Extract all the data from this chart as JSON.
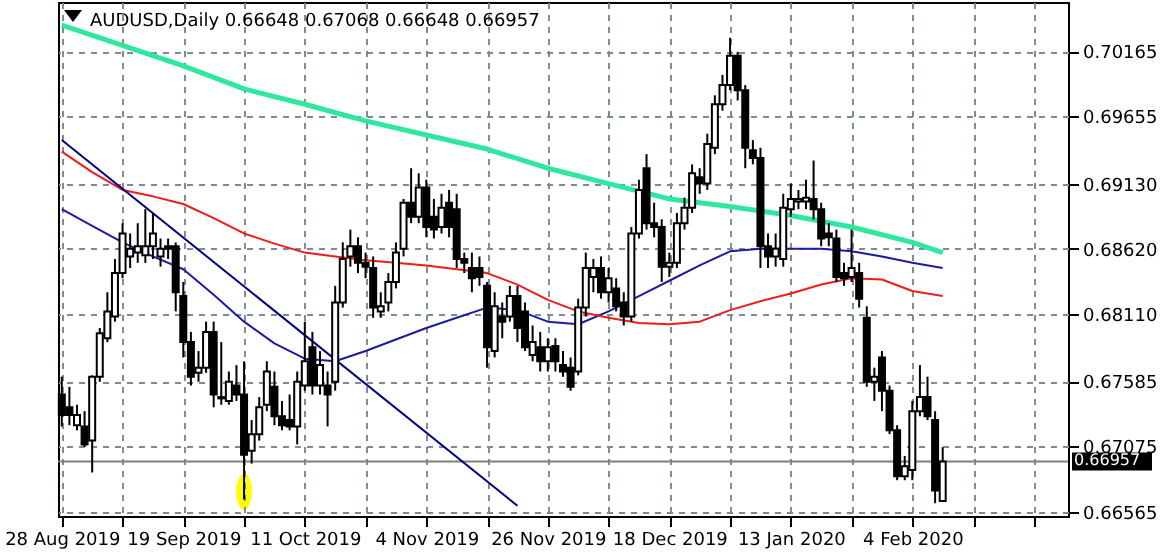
{
  "chart_data": {
    "type": "candlestick",
    "title": "AUDUSD,Daily  0.66648 0.67068 0.66648 0.66957",
    "categories": [
      "28 Aug 2019",
      null,
      null,
      null,
      null,
      null,
      null,
      null,
      null,
      null,
      null,
      null,
      null,
      null,
      null,
      null,
      "19 Sep 2019",
      null,
      null,
      null,
      null,
      null,
      null,
      null,
      null,
      null,
      null,
      null,
      null,
      null,
      null,
      null,
      "11 Oct 2019",
      null,
      null,
      null,
      null,
      null,
      null,
      null,
      null,
      null,
      null,
      null,
      null,
      null,
      null,
      null,
      "4 Nov 2019",
      null,
      null,
      null,
      null,
      null,
      null,
      null,
      null,
      null,
      null,
      null,
      null,
      null,
      null,
      null,
      "26 Nov 2019",
      null,
      null,
      null,
      null,
      null,
      null,
      null,
      null,
      null,
      null,
      null,
      null,
      null,
      null,
      null,
      "18 Dec 2019",
      null,
      null,
      null,
      null,
      null,
      null,
      null,
      null,
      null,
      null,
      null,
      null,
      null,
      null,
      null,
      "13 Jan 2020",
      null,
      null,
      null,
      null,
      null,
      null,
      null,
      null,
      null,
      null,
      null,
      null,
      null,
      null,
      null,
      "4 Feb 2020",
      null,
      null,
      null,
      null,
      null,
      null,
      null,
      null,
      null,
      null,
      null,
      null,
      null,
      null,
      null,
      null,
      null,
      null,
      null,
      null
    ],
    "ohlc": [
      [
        0.6748,
        0.6762,
        0.6723,
        0.6732
      ],
      [
        0.6738,
        0.6754,
        0.6724,
        0.6732
      ],
      [
        0.6724,
        0.674,
        0.672,
        0.6732
      ],
      [
        0.6723,
        0.6735,
        0.6707,
        0.6709
      ],
      [
        0.6712,
        0.6763,
        0.6687,
        0.6762
      ],
      [
        0.6762,
        0.68,
        0.6758,
        0.6796
      ],
      [
        0.6792,
        0.6828,
        0.6789,
        0.6813
      ],
      [
        0.6809,
        0.6854,
        0.6805,
        0.6843
      ],
      [
        0.6843,
        0.6882,
        0.6839,
        0.6874
      ],
      [
        0.6856,
        0.6874,
        0.6847,
        0.6862
      ],
      [
        0.6859,
        0.6882,
        0.6851,
        0.6864
      ],
      [
        0.6857,
        0.6893,
        0.6851,
        0.6864
      ],
      [
        0.6864,
        0.689,
        0.6854,
        0.6874
      ],
      [
        0.6856,
        0.687,
        0.6848,
        0.6862
      ],
      [
        0.6864,
        0.687,
        0.6854,
        0.6862
      ],
      [
        0.6864,
        0.6867,
        0.6813,
        0.6828
      ],
      [
        0.6825,
        0.6836,
        0.6777,
        0.6789
      ],
      [
        0.6789,
        0.6797,
        0.6755,
        0.6762
      ],
      [
        0.6765,
        0.6782,
        0.6758,
        0.6769
      ],
      [
        0.6769,
        0.6805,
        0.6765,
        0.6797
      ],
      [
        0.6797,
        0.6805,
        0.6738,
        0.6748
      ],
      [
        0.6746,
        0.6789,
        0.674,
        0.6745
      ],
      [
        0.6743,
        0.6766,
        0.674,
        0.6758
      ],
      [
        0.6755,
        0.6771,
        0.6743,
        0.6748
      ],
      [
        0.6748,
        0.6774,
        0.6666,
        0.6701
      ],
      [
        0.6704,
        0.6728,
        0.6694,
        0.6717
      ],
      [
        0.6717,
        0.6746,
        0.6712,
        0.6738
      ],
      [
        0.674,
        0.6774,
        0.6735,
        0.6766
      ],
      [
        0.6754,
        0.6766,
        0.6724,
        0.6731
      ],
      [
        0.6731,
        0.6743,
        0.672,
        0.6724
      ],
      [
        0.6728,
        0.6748,
        0.672,
        0.6723
      ],
      [
        0.6723,
        0.6766,
        0.6709,
        0.6758
      ],
      [
        0.6755,
        0.6805,
        0.6751,
        0.6774
      ],
      [
        0.6785,
        0.6797,
        0.6748,
        0.6755
      ],
      [
        0.6755,
        0.6782,
        0.6748,
        0.6771
      ],
      [
        0.6755,
        0.6766,
        0.6723,
        0.6748
      ],
      [
        0.6758,
        0.6833,
        0.6751,
        0.682
      ],
      [
        0.682,
        0.6867,
        0.6816,
        0.6854
      ],
      [
        0.6856,
        0.6877,
        0.6848,
        0.6864
      ],
      [
        0.6864,
        0.6871,
        0.6843,
        0.6851
      ],
      [
        0.6851,
        0.6859,
        0.6839,
        0.6848
      ],
      [
        0.6847,
        0.6856,
        0.6808,
        0.6816
      ],
      [
        0.6813,
        0.6828,
        0.6808,
        0.6817
      ],
      [
        0.682,
        0.6843,
        0.6813,
        0.6836
      ],
      [
        0.6836,
        0.6867,
        0.6831,
        0.6859
      ],
      [
        0.6862,
        0.6901,
        0.6856,
        0.6898
      ],
      [
        0.6898,
        0.6925,
        0.6882,
        0.6887
      ],
      [
        0.6887,
        0.6921,
        0.6882,
        0.691
      ],
      [
        0.691,
        0.6916,
        0.6871,
        0.6879
      ],
      [
        0.6887,
        0.6901,
        0.687,
        0.6877
      ],
      [
        0.6879,
        0.6905,
        0.6874,
        0.6894
      ],
      [
        0.6898,
        0.6908,
        0.6871,
        0.6879
      ],
      [
        0.6893,
        0.6905,
        0.6847,
        0.6854
      ],
      [
        0.6854,
        0.6859,
        0.6843,
        0.6851
      ],
      [
        0.6847,
        0.6859,
        0.6828,
        0.6839
      ],
      [
        0.6847,
        0.6856,
        0.6833,
        0.684
      ],
      [
        0.6833,
        0.6836,
        0.6769,
        0.6785
      ],
      [
        0.6782,
        0.6828,
        0.6777,
        0.6817
      ],
      [
        0.6809,
        0.682,
        0.6792,
        0.6805
      ],
      [
        0.6809,
        0.6833,
        0.6805,
        0.6825
      ],
      [
        0.6825,
        0.6833,
        0.6789,
        0.68
      ],
      [
        0.6813,
        0.682,
        0.6782,
        0.6785
      ],
      [
        0.6779,
        0.6802,
        0.6774,
        0.6789
      ],
      [
        0.6785,
        0.6797,
        0.6766,
        0.6774
      ],
      [
        0.6774,
        0.6792,
        0.6766,
        0.6785
      ],
      [
        0.6786,
        0.6792,
        0.6766,
        0.6774
      ],
      [
        0.6771,
        0.6782,
        0.6762,
        0.6766
      ],
      [
        0.6769,
        0.6777,
        0.6751,
        0.6754
      ],
      [
        0.6766,
        0.6823,
        0.6763,
        0.6816
      ],
      [
        0.6816,
        0.6859,
        0.6809,
        0.6847
      ],
      [
        0.684,
        0.6854,
        0.6828,
        0.6847
      ],
      [
        0.6847,
        0.6856,
        0.6823,
        0.6828
      ],
      [
        0.6828,
        0.6847,
        0.682,
        0.6839
      ],
      [
        0.6831,
        0.6839,
        0.6813,
        0.6817
      ],
      [
        0.682,
        0.6828,
        0.6802,
        0.6809
      ],
      [
        0.6809,
        0.6879,
        0.6805,
        0.6874
      ],
      [
        0.6874,
        0.6916,
        0.687,
        0.6908
      ],
      [
        0.6925,
        0.6936,
        0.6877,
        0.6882
      ],
      [
        0.6882,
        0.6898,
        0.6871,
        0.6879
      ],
      [
        0.6879,
        0.6885,
        0.6836,
        0.6848
      ],
      [
        0.6848,
        0.6859,
        0.684,
        0.6851
      ],
      [
        0.6851,
        0.689,
        0.6847,
        0.6882
      ],
      [
        0.6882,
        0.6902,
        0.6877,
        0.6894
      ],
      [
        0.6894,
        0.6928,
        0.689,
        0.6921
      ],
      [
        0.6918,
        0.6925,
        0.6905,
        0.6913
      ],
      [
        0.6913,
        0.6952,
        0.6908,
        0.6944
      ],
      [
        0.6941,
        0.6982,
        0.6936,
        0.6975
      ],
      [
        0.6975,
        0.6998,
        0.697,
        0.699
      ],
      [
        0.699,
        0.7027,
        0.6986,
        0.7013
      ],
      [
        0.7013,
        0.7016,
        0.6978,
        0.6986
      ],
      [
        0.6986,
        0.699,
        0.6925,
        0.6941
      ],
      [
        0.6939,
        0.6947,
        0.6928,
        0.6933
      ],
      [
        0.6933,
        0.6941,
        0.6847,
        0.6864
      ],
      [
        0.6864,
        0.6874,
        0.6847,
        0.6856
      ],
      [
        0.6856,
        0.6874,
        0.6848,
        0.6862
      ],
      [
        0.6854,
        0.6905,
        0.6848,
        0.6894
      ],
      [
        0.6893,
        0.6913,
        0.6887,
        0.6901
      ],
      [
        0.6899,
        0.6908,
        0.6893,
        0.6901
      ],
      [
        0.6899,
        0.6916,
        0.6893,
        0.6902
      ],
      [
        0.6901,
        0.6931,
        0.6885,
        0.6893
      ],
      [
        0.6893,
        0.6898,
        0.6864,
        0.687
      ],
      [
        0.6874,
        0.6882,
        0.6864,
        0.6871
      ],
      [
        0.687,
        0.6877,
        0.6836,
        0.684
      ],
      [
        0.6843,
        0.6851,
        0.6833,
        0.6839
      ],
      [
        0.684,
        0.6877,
        0.6836,
        0.6847
      ],
      [
        0.6843,
        0.6851,
        0.6816,
        0.6823
      ],
      [
        0.6808,
        0.6817,
        0.6754,
        0.6758
      ],
      [
        0.6758,
        0.6769,
        0.6743,
        0.6762
      ],
      [
        0.6777,
        0.6782,
        0.6735,
        0.6751
      ],
      [
        0.6751,
        0.6755,
        0.6717,
        0.672
      ],
      [
        0.672,
        0.6724,
        0.6681,
        0.6684
      ],
      [
        0.6684,
        0.67,
        0.6681,
        0.6692
      ],
      [
        0.6689,
        0.6743,
        0.6681,
        0.6735
      ],
      [
        0.6735,
        0.6771,
        0.6731,
        0.6746
      ],
      [
        0.6746,
        0.6762,
        0.6728,
        0.6731
      ],
      [
        0.6728,
        0.6735,
        0.6663,
        0.6673
      ],
      [
        0.66648,
        0.67068,
        0.66648,
        0.66957
      ],
      null,
      null,
      null,
      null,
      null,
      null,
      null,
      null,
      null,
      null,
      null,
      null,
      null,
      null,
      null,
      null
    ],
    "series": [
      {
        "type": "line",
        "color": "#2ee8a0",
        "values": [
          0.7037,
          null,
          null,
          null,
          null,
          null,
          null,
          null,
          0.7021,
          null,
          null,
          null,
          null,
          null,
          null,
          null,
          0.7005,
          null,
          null,
          null,
          null,
          null,
          null,
          null,
          0.6987,
          null,
          null,
          null,
          null,
          null,
          null,
          null,
          0.6975,
          null,
          null,
          null,
          null,
          null,
          null,
          null,
          0.6962,
          null,
          null,
          null,
          null,
          null,
          null,
          null,
          0.6951,
          null,
          null,
          null,
          null,
          null,
          null,
          null,
          0.694,
          null,
          null,
          null,
          null,
          null,
          null,
          null,
          0.6925,
          null,
          null,
          null,
          null,
          null,
          null,
          null,
          0.6913,
          null,
          null,
          null,
          null,
          null,
          null,
          null,
          0.6901,
          null,
          null,
          null,
          null,
          null,
          null,
          null,
          0.6895,
          null,
          null,
          null,
          null,
          null,
          null,
          null,
          0.6888,
          null,
          null,
          null,
          null,
          null,
          null,
          null,
          0.6879,
          null,
          null,
          null,
          null,
          null,
          null,
          null,
          0.6867,
          null,
          null,
          null,
          0.6859,
          null,
          null,
          null,
          null,
          null,
          null,
          null,
          null,
          null,
          null,
          null,
          null,
          null,
          null,
          null,
          null
        ]
      },
      {
        "type": "line",
        "color": "#1c1c9c",
        "values": [
          0.6893,
          null,
          null,
          null,
          0.688,
          null,
          null,
          null,
          0.6867,
          null,
          null,
          null,
          0.6856,
          null,
          null,
          null,
          0.6846,
          null,
          null,
          null,
          0.6826,
          null,
          null,
          null,
          0.6805,
          null,
          null,
          null,
          0.6788,
          null,
          null,
          null,
          0.6776,
          null,
          null,
          null,
          0.6774,
          null,
          null,
          null,
          0.6782,
          null,
          null,
          null,
          0.6791,
          null,
          null,
          null,
          0.68,
          null,
          null,
          null,
          0.6808,
          null,
          null,
          null,
          0.6816,
          null,
          null,
          null,
          0.6814,
          null,
          null,
          null,
          0.6805,
          null,
          null,
          null,
          0.6803,
          null,
          null,
          null,
          0.6813,
          null,
          null,
          null,
          0.6825,
          null,
          null,
          null,
          0.6837,
          null,
          null,
          null,
          0.6849,
          null,
          null,
          null,
          0.686,
          null,
          null,
          null,
          0.6862,
          null,
          null,
          null,
          0.6862,
          null,
          null,
          null,
          0.6862,
          null,
          null,
          null,
          0.686,
          null,
          null,
          null,
          0.6856,
          null,
          null,
          null,
          0.6851,
          null,
          null,
          null,
          0.6847,
          null,
          null,
          null,
          null,
          null,
          null,
          null,
          null,
          null,
          null,
          null,
          null,
          null,
          null,
          null,
          null
        ]
      },
      {
        "type": "line",
        "color": "#ee1c1c",
        "values": [
          0.6938,
          null,
          null,
          null,
          0.6922,
          null,
          null,
          null,
          0.6908,
          null,
          null,
          null,
          0.6903,
          null,
          null,
          null,
          0.6897,
          null,
          null,
          null,
          0.6886,
          null,
          null,
          null,
          0.6874,
          null,
          null,
          null,
          0.6866,
          null,
          null,
          null,
          0.6859,
          null,
          null,
          null,
          0.6856,
          null,
          null,
          null,
          0.6853,
          null,
          null,
          null,
          0.6851,
          null,
          null,
          null,
          0.6849,
          null,
          null,
          null,
          0.6846,
          null,
          null,
          null,
          0.6843,
          null,
          null,
          null,
          0.6834,
          null,
          null,
          null,
          0.6822,
          null,
          null,
          null,
          0.6813,
          null,
          null,
          null,
          0.6808,
          null,
          null,
          null,
          0.6804,
          null,
          null,
          null,
          0.6803,
          null,
          null,
          null,
          0.6805,
          null,
          null,
          null,
          0.6814,
          null,
          null,
          null,
          0.6821,
          null,
          null,
          null,
          0.6827,
          null,
          null,
          null,
          0.6834,
          null,
          null,
          null,
          0.6839,
          null,
          null,
          null,
          0.6838,
          null,
          null,
          null,
          0.6829,
          null,
          null,
          null,
          0.6825,
          null,
          null,
          null,
          null,
          null,
          null,
          null,
          null,
          null,
          null,
          null,
          null,
          null,
          null,
          null,
          null
        ]
      },
      {
        "type": "line",
        "color": "#000080",
        "values": [
          0.6947,
          null,
          null,
          null,
          null,
          null,
          null,
          null,
          null,
          null,
          null,
          null,
          null,
          null,
          null,
          null,
          null,
          null,
          null,
          null,
          null,
          null,
          null,
          null,
          null,
          null,
          null,
          null,
          null,
          null,
          null,
          null,
          null,
          null,
          null,
          null,
          null,
          null,
          null,
          null,
          null,
          null,
          null,
          null,
          null,
          null,
          null,
          null,
          null,
          null,
          null,
          null,
          null,
          null,
          null,
          null,
          null,
          null,
          null,
          null,
          0.6661,
          null,
          null,
          null,
          null,
          null,
          null,
          null,
          null,
          null,
          null,
          null,
          null,
          null,
          null,
          null,
          null,
          null,
          null,
          null,
          null,
          null,
          null,
          null,
          null,
          null,
          null,
          null,
          null,
          null,
          null,
          null,
          null,
          null,
          null,
          null,
          null,
          null,
          null,
          null,
          null,
          null,
          null,
          null,
          null,
          null,
          null,
          null,
          null,
          null,
          null,
          null,
          null,
          null,
          null,
          null,
          null,
          null,
          null,
          null,
          null,
          null,
          null,
          null,
          null,
          null,
          null,
          null,
          null,
          null,
          null,
          null,
          null
        ]
      }
    ],
    "ref_lines": [
      {
        "axis": "y",
        "value": 0.66957,
        "label": "0.66957",
        "color": "#808080"
      }
    ],
    "ylim": [
      0.6653,
      0.7055
    ],
    "yticks": [
      0.66565,
      0.67075,
      0.67585,
      {
        "value": 0.6811,
        "label": "0.68110"
      },
      {
        "value": 0.6862,
        "label": "0.68620"
      },
      {
        "value": 0.6913,
        "label": "0.69130"
      },
      0.69655,
      0.70165
    ],
    "grid": true
  }
}
